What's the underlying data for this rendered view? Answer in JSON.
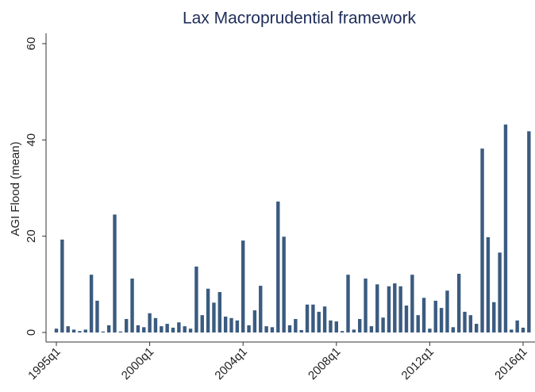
{
  "chart_data": {
    "type": "bar",
    "title": "Lax Macroprudential framework",
    "y_label": "AGI Flood (mean)",
    "categories": [
      "1995q1",
      null,
      null,
      null,
      null,
      null,
      null,
      null,
      null,
      null,
      null,
      null,
      null,
      null,
      null,
      null,
      "2000q1",
      null,
      null,
      null,
      null,
      null,
      null,
      null,
      null,
      null,
      null,
      null,
      null,
      null,
      null,
      null,
      "2004q1",
      null,
      null,
      null,
      null,
      null,
      null,
      null,
      null,
      null,
      null,
      null,
      null,
      null,
      null,
      null,
      "2008q1",
      null,
      null,
      null,
      null,
      null,
      null,
      null,
      null,
      null,
      null,
      null,
      null,
      null,
      null,
      null,
      "2012q1",
      null,
      null,
      null,
      null,
      null,
      null,
      null,
      null,
      null,
      null,
      null,
      null,
      null,
      null,
      null,
      "2016q1",
      null
    ],
    "values": [
      0.8,
      19.3,
      1.3,
      0.6,
      0.3,
      0.6,
      12.0,
      6.6,
      0.2,
      1.5,
      24.5,
      0.2,
      2.8,
      11.2,
      1.5,
      1.1,
      4.0,
      3.0,
      1.3,
      1.8,
      1.0,
      2.1,
      1.3,
      0.8,
      13.7,
      3.6,
      9.1,
      6.2,
      8.4,
      3.3,
      3.0,
      2.5,
      19.1,
      1.5,
      4.6,
      9.7,
      1.3,
      1.1,
      27.2,
      19.9,
      1.5,
      2.8,
      0.5,
      5.8,
      5.8,
      4.3,
      5.4,
      2.5,
      2.3,
      0.3,
      12.0,
      0.6,
      2.8,
      11.2,
      1.3,
      10.0,
      3.1,
      9.6,
      10.2,
      9.6,
      5.6,
      12.0,
      3.6,
      7.2,
      0.8,
      6.6,
      5.1,
      8.7,
      1.1,
      12.2,
      4.3,
      3.6,
      1.8,
      38.2,
      19.8,
      6.3,
      16.6,
      43.2,
      0.6,
      2.5,
      1.0,
      41.8
    ],
    "color": "#3b5b80",
    "ylim": [
      0,
      60
    ],
    "yticks": [
      0,
      20,
      40,
      60
    ]
  }
}
